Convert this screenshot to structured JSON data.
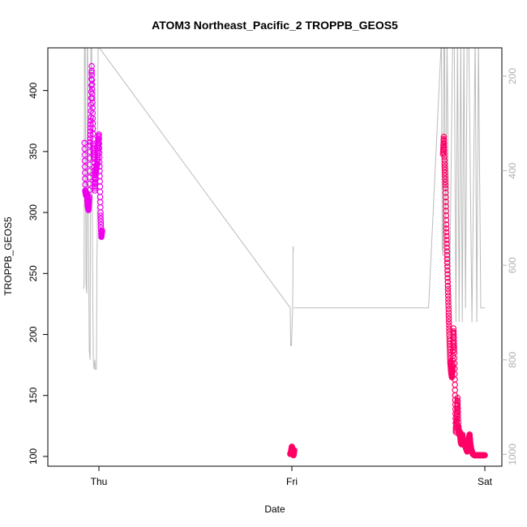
{
  "chart_data": {
    "type": "scatter",
    "title": "ATOM3 Northeast_Pacific_2 TROPPB_GEOS5",
    "xlabel": "Date",
    "ylabel": "TROPPB_GEOS5",
    "x_ticks": [
      "Thu",
      "Fri",
      "Sat"
    ],
    "y_ticks": [
      100,
      150,
      200,
      250,
      300,
      350,
      400
    ],
    "y_right_ticks": [
      200,
      400,
      600,
      800,
      1000
    ],
    "ylim": [
      92,
      435
    ],
    "y_right_lim": [
      1025,
      140
    ],
    "y_right_reversed": true,
    "grid": false,
    "colors": {
      "early": "#ee00ee",
      "late": "#ff0066",
      "background_trace": "#bbbbbb"
    },
    "series": [
      {
        "values_x_hours": [
          -1.8,
          -1.7,
          -1.6,
          -1.5,
          -1.4,
          -1.3,
          -1.2,
          -1.1,
          -1.0,
          -0.9,
          -0.8,
          -0.7,
          -0.6,
          -0.5,
          -0.4,
          -0.3,
          -0.2,
          -0.1,
          0.0,
          0.1,
          0.2,
          0.3,
          0.4
        ],
        "y": [
          357,
          318,
          314,
          316,
          306,
          302,
          313,
          355,
          378,
          420,
          390,
          356,
          344,
          318,
          332,
          338,
          340,
          354,
          364,
          334,
          300,
          280,
          285
        ]
      },
      {
        "values_x_hours": [
          23.8,
          23.9,
          24.0,
          24.1,
          24.2,
          24.3
        ],
        "y": [
          102,
          104,
          108,
          103,
          101,
          105
        ]
      },
      {
        "values_x_hours": [
          42.8,
          42.9,
          43.0,
          43.1,
          43.2,
          43.3,
          43.4,
          43.5,
          43.6,
          43.7,
          43.8,
          43.9,
          44.0,
          44.1,
          44.2,
          44.3,
          44.4,
          44.5,
          44.6,
          44.7,
          44.8,
          44.9,
          45.0,
          45.1,
          45.2,
          45.4,
          45.6,
          45.8,
          46.0,
          46.1,
          46.2,
          46.3,
          46.5,
          46.7,
          47.0,
          47.3,
          47.6,
          48.0
        ],
        "y": [
          348,
          362,
          340,
          320,
          290,
          265,
          240,
          218,
          197,
          178,
          170,
          165,
          175,
          205,
          185,
          150,
          120,
          130,
          148,
          125,
          118,
          120,
          112,
          110,
          118,
          110,
          108,
          104,
          112,
          118,
          110,
          106,
          102,
          101,
          101,
          101,
          101,
          101
        ]
      }
    ],
    "background_trace": {
      "description_label": "",
      "x_hours": [
        -1.9,
        -1.85,
        -1.8,
        -1.7,
        -1.6,
        -1.5,
        -1.45,
        -1.4,
        -1.3,
        -1.2,
        -1.1,
        -1.0,
        -0.9,
        -0.8,
        -0.7,
        -0.6,
        -0.5,
        -0.45,
        -0.4,
        -0.35,
        -0.3,
        -0.25,
        -0.2,
        -0.1,
        0.0,
        0.05,
        23.8,
        23.85,
        23.95,
        24.1,
        24.15,
        24.2
      ],
      "right_values": [
        650,
        640,
        140,
        140,
        640,
        660,
        140,
        140,
        540,
        780,
        800,
        140,
        140,
        600,
        800,
        820,
        800,
        820,
        820,
        820,
        820,
        600,
        540,
        140,
        140,
        140,
        690,
        770,
        770,
        690,
        560,
        570
      ]
    }
  }
}
